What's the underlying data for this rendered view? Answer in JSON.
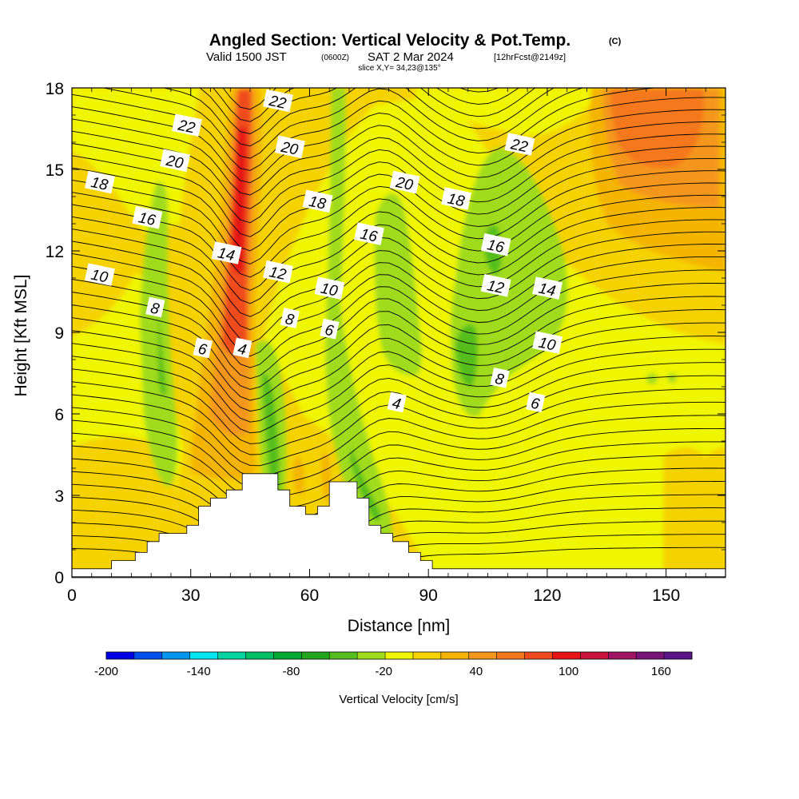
{
  "title": {
    "main": "Angled Section: Vertical Velocity & Pot.Temp.",
    "copyright": "(C)",
    "valid_prefix": "Valid 1500 JST",
    "valid_utc": "(0600Z)",
    "valid_date": "SAT 2 Mar 2024",
    "forecast": "[12hrFcst@2149z]",
    "slice": "slice X,Y= 34,23@135°"
  },
  "chart_data": {
    "type": "heatmap",
    "subtype": "vertical cross-section, filled contours of vertical velocity with potential temperature line contours",
    "xlabel": "Distance [nm]",
    "ylabel": "Height [Kft MSL]",
    "xlim": [
      0,
      165
    ],
    "ylim": [
      0,
      18
    ],
    "x_ticks": [
      0,
      30,
      60,
      90,
      120,
      150
    ],
    "y_ticks": [
      0,
      3,
      6,
      9,
      12,
      15,
      18
    ],
    "colorbar": {
      "label": "Vertical Velocity [cm/s]",
      "range": [
        -200,
        180
      ],
      "step": 20,
      "tick_labels": [
        "-200",
        "-140",
        "-80",
        "-20",
        "40",
        "100",
        "160"
      ],
      "tick_values": [
        -200,
        -140,
        -80,
        -20,
        40,
        100,
        160
      ],
      "colors": [
        "#0000e6",
        "#0050f0",
        "#0096f0",
        "#00e6f0",
        "#00d2a0",
        "#00be64",
        "#00aa32",
        "#23a51e",
        "#55be1e",
        "#a0dc1e",
        "#f0f500",
        "#f5d200",
        "#f5b400",
        "#f5961e",
        "#f5781e",
        "#f04b1e",
        "#e61414",
        "#c8143c",
        "#a01464",
        "#781478",
        "#5a1488"
      ]
    },
    "contour_labels": [
      {
        "value": "22",
        "x": 29,
        "y": 16.6
      },
      {
        "value": "22",
        "x": 52,
        "y": 17.5
      },
      {
        "value": "22",
        "x": 113,
        "y": 15.9
      },
      {
        "value": "20",
        "x": 26,
        "y": 15.3
      },
      {
        "value": "20",
        "x": 55,
        "y": 15.8
      },
      {
        "value": "20",
        "x": 84,
        "y": 14.5
      },
      {
        "value": "18",
        "x": 7,
        "y": 14.5
      },
      {
        "value": "18",
        "x": 62,
        "y": 13.8
      },
      {
        "value": "18",
        "x": 97,
        "y": 13.9
      },
      {
        "value": "16",
        "x": 19,
        "y": 13.2
      },
      {
        "value": "16",
        "x": 75,
        "y": 12.6
      },
      {
        "value": "16",
        "x": 107,
        "y": 12.2
      },
      {
        "value": "14",
        "x": 39,
        "y": 11.9
      },
      {
        "value": "14",
        "x": 120,
        "y": 10.6
      },
      {
        "value": "12",
        "x": 52,
        "y": 11.2
      },
      {
        "value": "12",
        "x": 107,
        "y": 10.7
      },
      {
        "value": "10",
        "x": 7,
        "y": 11.1
      },
      {
        "value": "10",
        "x": 65,
        "y": 10.6
      },
      {
        "value": "10",
        "x": 120,
        "y": 8.6
      },
      {
        "value": "8",
        "x": 21,
        "y": 9.9
      },
      {
        "value": "8",
        "x": 55,
        "y": 9.5
      },
      {
        "value": "8",
        "x": 108,
        "y": 7.3
      },
      {
        "value": "6",
        "x": 33,
        "y": 8.4
      },
      {
        "value": "6",
        "x": 65,
        "y": 9.1
      },
      {
        "value": "6",
        "x": 117,
        "y": 6.4
      },
      {
        "value": "4",
        "x": 43,
        "y": 8.4
      },
      {
        "value": "4",
        "x": 82,
        "y": 6.4
      }
    ],
    "terrain_profile_kft": [
      [
        0,
        0.3
      ],
      [
        10,
        0.3
      ],
      [
        10,
        0.6
      ],
      [
        16,
        0.6
      ],
      [
        16,
        0.9
      ],
      [
        19,
        0.9
      ],
      [
        19,
        1.3
      ],
      [
        22,
        1.3
      ],
      [
        22,
        1.6
      ],
      [
        29,
        1.6
      ],
      [
        29,
        1.9
      ],
      [
        32,
        1.9
      ],
      [
        32,
        2.6
      ],
      [
        35,
        2.6
      ],
      [
        35,
        2.9
      ],
      [
        39,
        2.9
      ],
      [
        39,
        3.2
      ],
      [
        43,
        3.2
      ],
      [
        43,
        3.8
      ],
      [
        52,
        3.8
      ],
      [
        52,
        3.2
      ],
      [
        55,
        3.2
      ],
      [
        55,
        2.6
      ],
      [
        59,
        2.6
      ],
      [
        59,
        2.3
      ],
      [
        62,
        2.3
      ],
      [
        62,
        2.6
      ],
      [
        65,
        2.6
      ],
      [
        65,
        3.5
      ],
      [
        72,
        3.5
      ],
      [
        72,
        2.9
      ],
      [
        75,
        2.9
      ],
      [
        75,
        1.9
      ],
      [
        78,
        1.9
      ],
      [
        78,
        1.6
      ],
      [
        81,
        1.6
      ],
      [
        81,
        1.3
      ],
      [
        85,
        1.3
      ],
      [
        85,
        0.9
      ],
      [
        88,
        0.9
      ],
      [
        88,
        0.6
      ],
      [
        91,
        0.6
      ],
      [
        91,
        0.3
      ],
      [
        165,
        0.3
      ]
    ]
  }
}
